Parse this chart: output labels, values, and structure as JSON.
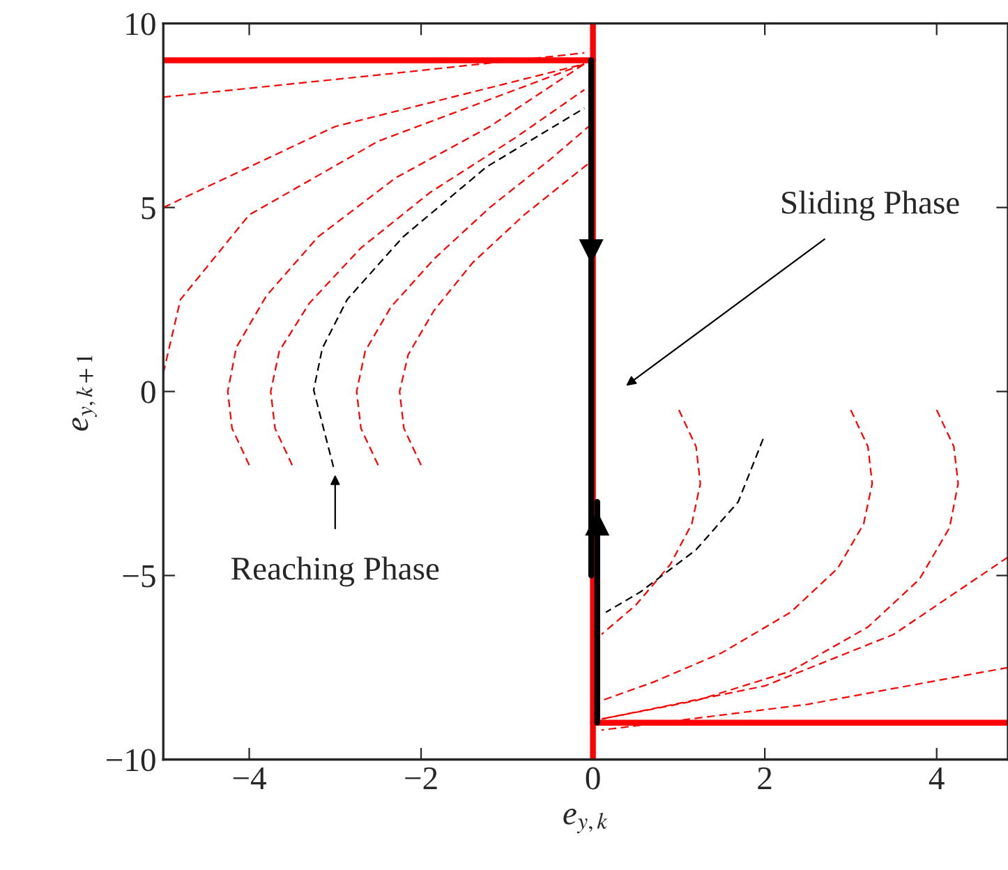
{
  "chart_data": {
    "type": "line",
    "xlabel": "e$_{y,k}$",
    "ylabel": "e$_{y,k+1}$",
    "xlim": [
      -5,
      4.83
    ],
    "ylim": [
      -10,
      10
    ],
    "xticks": [
      {
        "value": -4,
        "label": "−4"
      },
      {
        "value": -2,
        "label": "−2"
      },
      0,
      2,
      4
    ],
    "yticks": [
      {
        "value": -10,
        "label": "−10"
      },
      {
        "value": -5,
        "label": "−5"
      },
      0,
      5,
      10
    ],
    "grid": false,
    "legend": false,
    "line_style": "dashed",
    "series": [
      {
        "color": "#ff0000",
        "x": [
          -4,
          -4.2,
          -4.25,
          -4.15,
          -3.8,
          -3.2,
          -2.3,
          -1.2,
          -0.1
        ],
        "values": [
          -2,
          -1,
          0,
          1.2,
          2.6,
          4.2,
          5.8,
          7.2,
          8.9
        ]
      },
      {
        "color": "#ff0000",
        "x": [
          -3.5,
          -3.7,
          -3.75,
          -3.65,
          -3.3,
          -2.7,
          -1.9,
          -0.9,
          -0.1
        ],
        "values": [
          -2,
          -1,
          0,
          1.1,
          2.4,
          3.9,
          5.4,
          6.9,
          8.2
        ]
      },
      {
        "color": "#ff0000",
        "x": [
          -2.5,
          -2.7,
          -2.75,
          -2.65,
          -2.35,
          -1.85,
          -1.2,
          -0.5,
          -0.05
        ],
        "values": [
          -2,
          -1,
          0,
          1.1,
          2.3,
          3.6,
          5,
          6.3,
          7.2
        ]
      },
      {
        "color": "#ff0000",
        "x": [
          -2,
          -2.2,
          -2.25,
          -2.15,
          -1.85,
          -1.4,
          -0.8,
          -0.05
        ],
        "values": [
          -2,
          -1,
          0,
          1,
          2.2,
          3.5,
          4.8,
          6.2
        ]
      },
      {
        "color": "#ff0000",
        "x": [
          -5,
          -4.8,
          -4,
          -2.5,
          -0.1
        ],
        "values": [
          0.5,
          2.5,
          4.8,
          6.8,
          8.9
        ]
      },
      {
        "color": "#ff0000",
        "x": [
          -5,
          -3,
          -0.1
        ],
        "values": [
          5,
          7.2,
          8.9
        ]
      },
      {
        "color": "#ff0000",
        "x": [
          -5,
          -2.5,
          -0.1
        ],
        "values": [
          8,
          8.6,
          9.2
        ]
      },
      {
        "color": "#000000",
        "x": [
          -3.02,
          -3.25,
          -3.15,
          -2.86,
          -2.21,
          -1.24,
          -0.1
        ],
        "values": [
          -2.05,
          0.04,
          1.17,
          2.5,
          4.2,
          6.1,
          7.7
        ]
      },
      {
        "color": "#ff0000",
        "x": [
          4,
          4.2,
          4.25,
          4.15,
          3.8,
          3.2,
          2.3,
          1.2,
          0.1
        ],
        "values": [
          -0.5,
          -1.5,
          -2.5,
          -3.7,
          -5.1,
          -6.4,
          -7.6,
          -8.4,
          -8.9
        ]
      },
      {
        "color": "#ff0000",
        "x": [
          3,
          3.2,
          3.25,
          3.15,
          2.85,
          2.3,
          1.5,
          0.7,
          0.1
        ],
        "values": [
          -0.5,
          -1.5,
          -2.5,
          -3.6,
          -4.8,
          -6,
          -7.1,
          -7.9,
          -8.4
        ]
      },
      {
        "color": "#ff0000",
        "x": [
          1,
          1.2,
          1.25,
          1.15,
          0.9,
          0.5,
          0.1
        ],
        "values": [
          -0.5,
          -1.5,
          -2.5,
          -3.6,
          -4.7,
          -5.8,
          -6.6
        ]
      },
      {
        "color": "#ff0000",
        "x": [
          4.83,
          3.5,
          2,
          0.1
        ],
        "values": [
          -4.5,
          -6.6,
          -8,
          -8.9
        ]
      },
      {
        "color": "#ff0000",
        "x": [
          4.83,
          2.5,
          0.1
        ],
        "values": [
          -7.5,
          -8.5,
          -9.2
        ]
      },
      {
        "color": "#000000",
        "x": [
          1.98,
          1.69,
          1.2,
          0.55,
          0.15
        ],
        "values": [
          -1.29,
          -3,
          -4.3,
          -5.45,
          -6
        ]
      },
      {
        "color": "#ff0000",
        "line_style": "solid",
        "x": [
          -5,
          0
        ],
        "values": [
          9,
          9
        ]
      },
      {
        "color": "#ff0000",
        "line_style": "solid",
        "x": [
          0,
          4.83
        ],
        "values": [
          -9,
          -9
        ]
      },
      {
        "color": "#ff0000",
        "line_style": "solid",
        "x": [
          0,
          0
        ],
        "values": [
          10,
          -10
        ]
      },
      {
        "color": "#000000",
        "line_style": "solid",
        "x": [
          -0.02,
          -0.02
        ],
        "values": [
          9,
          -5
        ]
      },
      {
        "color": "#000000",
        "line_style": "solid",
        "x": [
          0.05,
          0.05
        ],
        "values": [
          -9,
          -3
        ]
      }
    ],
    "annotations": [
      "Sliding Phase",
      {
        "text": "Reaching Phase",
        "x": -3,
        "y": -2
      }
    ]
  }
}
